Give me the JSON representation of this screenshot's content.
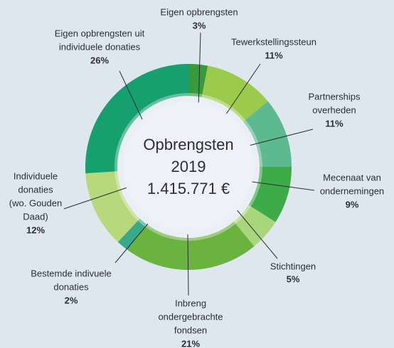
{
  "chart_data": {
    "type": "pie",
    "center_text": [
      "Opbrengsten",
      "2019",
      "1.415.771 €"
    ],
    "categories": [
      [
        "Eigen opbrengsten"
      ],
      [
        "Tewerkstellingssteun"
      ],
      [
        "Partnerships",
        "overheden"
      ],
      [
        "Mecenaat van",
        "ondernemingen"
      ],
      [
        "Stichtingen"
      ],
      [
        "Inbreng",
        "ondergebrachte",
        "fondsen"
      ],
      [
        "Bestemde indivuele",
        "donaties"
      ],
      [
        "Individuele",
        "donaties",
        "(wo. Gouden",
        "Daad)"
      ],
      [
        "Eigen opbrengsten uit",
        "individuele donaties"
      ]
    ],
    "values": [
      3,
      11,
      11,
      9,
      5,
      21,
      2,
      12,
      26
    ],
    "value_labels": [
      "3%",
      "11%",
      "11%",
      "9%",
      "5%",
      "21%",
      "2%",
      "12%",
      "26%"
    ],
    "colors": [
      "#38993d",
      "#9ccb4b",
      "#5db98f",
      "#3cab48",
      "#a9d57c",
      "#6bb33f",
      "#3aa98a",
      "#b7d97b",
      "#16a06f"
    ]
  }
}
